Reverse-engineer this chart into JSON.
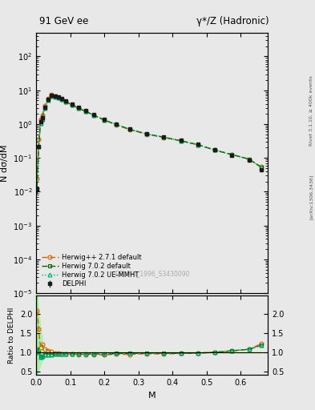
{
  "title_left": "91 GeV ee",
  "title_right": "γ*/Z (Hadronic)",
  "ylabel_main": "N dσ/dM",
  "ylabel_ratio": "Ratio to DELPHI",
  "xlabel": "M",
  "right_label_top": "Rivet 3.1.10, ≥ 400k events",
  "right_label_bottom": "[arXiv:1306.3436]",
  "watermark": "DELPHI_1996_S3430090",
  "ylim_main": [
    1e-05,
    500
  ],
  "ylim_ratio": [
    0.4,
    2.5
  ],
  "xlim": [
    0.0,
    0.68
  ],
  "delphi_x": [
    0.0025,
    0.0075,
    0.0125,
    0.0175,
    0.025,
    0.035,
    0.045,
    0.055,
    0.065,
    0.075,
    0.0875,
    0.105,
    0.125,
    0.145,
    0.17,
    0.2,
    0.235,
    0.275,
    0.325,
    0.375,
    0.425,
    0.475,
    0.525,
    0.575,
    0.625,
    0.66
  ],
  "delphi_y": [
    0.012,
    0.22,
    1.2,
    1.5,
    3.2,
    5.5,
    7.2,
    6.8,
    6.3,
    5.8,
    4.8,
    3.8,
    3.1,
    2.5,
    1.9,
    1.4,
    1.0,
    0.72,
    0.52,
    0.42,
    0.33,
    0.25,
    0.17,
    0.12,
    0.085,
    0.045
  ],
  "delphi_yerr": [
    0.003,
    0.02,
    0.08,
    0.1,
    0.15,
    0.2,
    0.25,
    0.2,
    0.2,
    0.18,
    0.15,
    0.12,
    0.1,
    0.08,
    0.06,
    0.05,
    0.04,
    0.03,
    0.02,
    0.02,
    0.015,
    0.012,
    0.008,
    0.006,
    0.004,
    0.003
  ],
  "herwig_x": [
    0.0025,
    0.0075,
    0.0125,
    0.0175,
    0.025,
    0.035,
    0.045,
    0.055,
    0.065,
    0.075,
    0.0875,
    0.105,
    0.125,
    0.145,
    0.17,
    0.2,
    0.235,
    0.275,
    0.325,
    0.375,
    0.425,
    0.475,
    0.525,
    0.575,
    0.625,
    0.66
  ],
  "herwig_pp_y": [
    0.025,
    0.35,
    1.35,
    1.8,
    3.5,
    5.8,
    7.3,
    6.7,
    6.1,
    5.5,
    4.6,
    3.6,
    2.9,
    2.35,
    1.78,
    1.3,
    0.95,
    0.68,
    0.5,
    0.4,
    0.32,
    0.245,
    0.17,
    0.125,
    0.092,
    0.055
  ],
  "herwig702_y": [
    0.013,
    0.22,
    1.05,
    1.35,
    3.0,
    5.2,
    6.8,
    6.5,
    6.0,
    5.5,
    4.6,
    3.65,
    2.95,
    2.38,
    1.82,
    1.33,
    0.97,
    0.7,
    0.51,
    0.41,
    0.32,
    0.245,
    0.17,
    0.125,
    0.092,
    0.053
  ],
  "herwig702ue_y": [
    0.013,
    0.22,
    1.05,
    1.35,
    3.0,
    5.2,
    6.8,
    6.5,
    6.0,
    5.5,
    4.6,
    3.65,
    2.95,
    2.38,
    1.82,
    1.33,
    0.97,
    0.7,
    0.51,
    0.41,
    0.32,
    0.245,
    0.17,
    0.125,
    0.092,
    0.053
  ],
  "ratio_x": [
    0.0025,
    0.0075,
    0.0125,
    0.0175,
    0.025,
    0.035,
    0.045,
    0.055,
    0.065,
    0.075,
    0.0875,
    0.105,
    0.125,
    0.145,
    0.17,
    0.2,
    0.235,
    0.275,
    0.325,
    0.375,
    0.425,
    0.475,
    0.525,
    0.575,
    0.625,
    0.66
  ],
  "ratio_pp": [
    2.1,
    1.6,
    1.12,
    1.2,
    1.09,
    1.05,
    1.01,
    0.985,
    0.968,
    0.948,
    0.958,
    0.947,
    0.935,
    0.94,
    0.937,
    0.929,
    0.95,
    0.944,
    0.962,
    0.952,
    0.97,
    0.98,
    1.0,
    1.04,
    1.08,
    1.22
  ],
  "ratio_702": [
    1.08,
    1.0,
    0.875,
    0.9,
    0.937,
    0.945,
    0.944,
    0.956,
    0.952,
    0.948,
    0.958,
    0.961,
    0.952,
    0.952,
    0.958,
    0.95,
    0.97,
    0.972,
    0.981,
    0.976,
    0.97,
    0.98,
    1.0,
    1.04,
    1.08,
    1.18
  ],
  "ratio_702ue": [
    1.08,
    1.0,
    0.875,
    0.9,
    0.937,
    0.945,
    0.944,
    0.956,
    0.952,
    0.948,
    0.958,
    0.961,
    0.952,
    0.952,
    0.958,
    0.95,
    0.97,
    0.972,
    0.981,
    0.976,
    0.97,
    0.98,
    1.0,
    1.04,
    1.08,
    1.18
  ],
  "band_x": [
    0.0025,
    0.0075,
    0.0125,
    0.0175,
    0.025,
    0.035,
    0.045,
    0.055,
    0.065,
    0.075,
    0.0875,
    0.105,
    0.125,
    0.145,
    0.17,
    0.2,
    0.235,
    0.275,
    0.325,
    0.375,
    0.425,
    0.475,
    0.525,
    0.575,
    0.625,
    0.66
  ],
  "band_ylo": [
    0.5,
    0.85,
    0.95,
    0.97,
    0.98,
    0.985,
    0.988,
    0.99,
    0.99,
    0.99,
    0.99,
    0.991,
    0.991,
    0.991,
    0.992,
    0.993,
    0.993,
    0.993,
    0.993,
    0.993,
    0.993,
    0.993,
    0.993,
    0.993,
    0.993,
    0.99
  ],
  "band_yhi": [
    2.5,
    1.15,
    1.05,
    1.03,
    1.02,
    1.015,
    1.012,
    1.01,
    1.01,
    1.01,
    1.01,
    1.009,
    1.009,
    1.009,
    1.008,
    1.007,
    1.007,
    1.007,
    1.007,
    1.007,
    1.007,
    1.007,
    1.007,
    1.007,
    1.007,
    1.01
  ],
  "color_delphi": "#1a1a1a",
  "color_pp": "#cc6600",
  "color_702": "#006600",
  "color_702ue": "#00aa77",
  "color_band_green": "#99ee99",
  "color_band_yellow": "#eeff99",
  "bg_color": "#e8e8e8"
}
